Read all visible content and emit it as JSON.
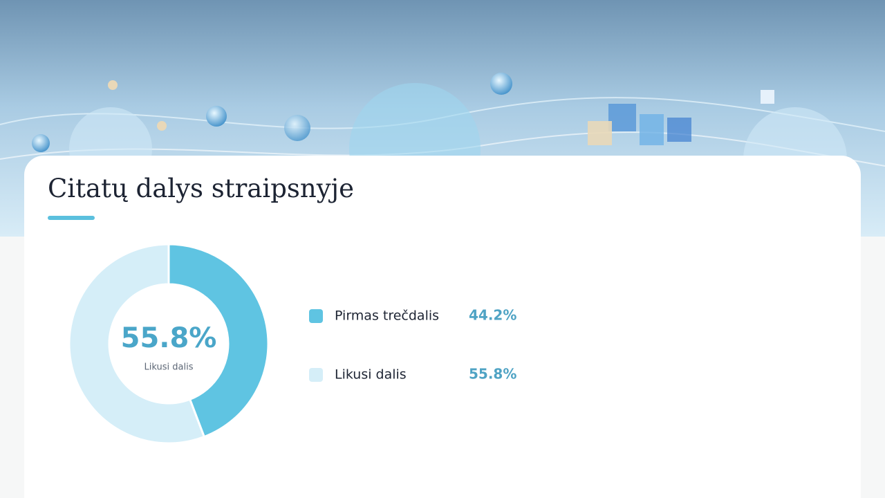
{
  "chart_data": {
    "type": "donut",
    "title": "Citatų dalys straipsnyje",
    "categories": [
      "Pirmas trečdalis",
      "Likusi dalis"
    ],
    "values": [
      44.2,
      55.8
    ],
    "value_labels": [
      "44.2%",
      "55.8%"
    ],
    "colors": [
      "#5fc4e2",
      "#d5eef8"
    ],
    "center_index": 1
  }
}
